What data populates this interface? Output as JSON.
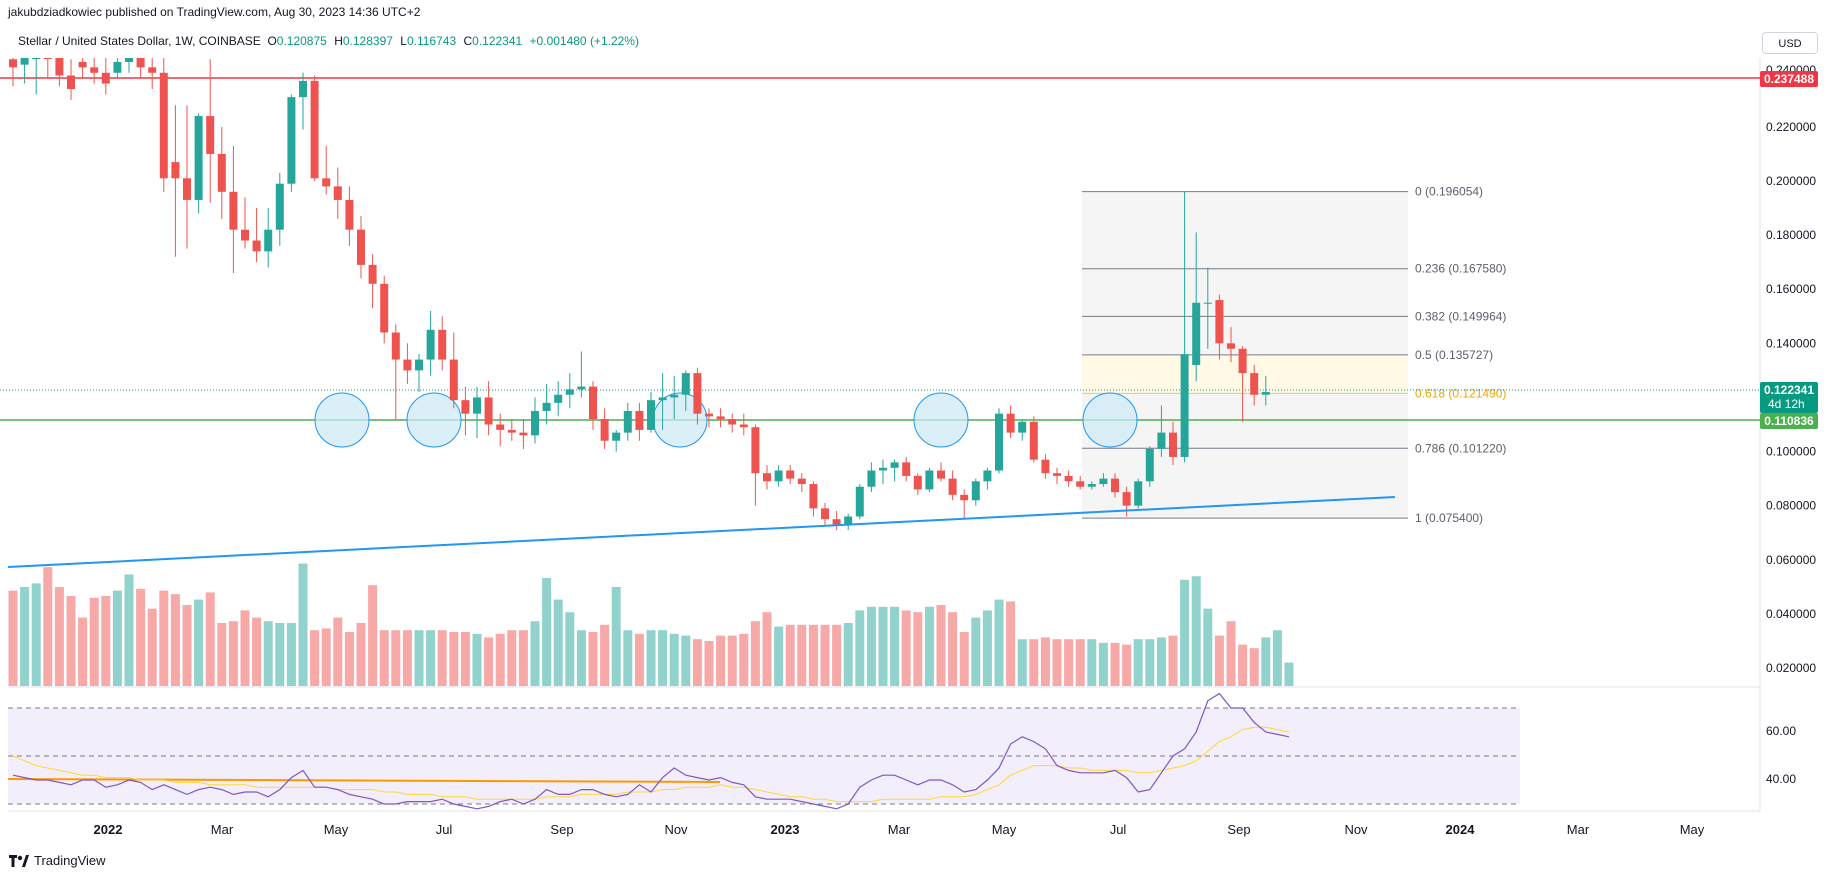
{
  "header": {
    "published_by": "jakubdziadkowiec published on TradingView.com, Aug 30, 2023 14:36 UTC+2",
    "symbol": "Stellar / United States Dollar, 1W, COINBASE",
    "ohlc": [
      {
        "key": "O",
        "value": "0.120875"
      },
      {
        "key": "H",
        "value": "0.128397"
      },
      {
        "key": "L",
        "value": "0.116743"
      },
      {
        "key": "C",
        "value": "0.122341"
      }
    ],
    "change": "+0.001480 (+1.22%)",
    "currency": "USD"
  },
  "price_axis": {
    "ticks": [
      "0.220000",
      "0.200000",
      "0.180000",
      "0.160000",
      "0.140000",
      "0.100000",
      "0.080000",
      "0.060000",
      "0.040000",
      "0.020000"
    ],
    "top_partial": "0.240000"
  },
  "price_tags": {
    "resistance": {
      "label": "0.237488",
      "color": "#f23645"
    },
    "current": {
      "label": "0.122341",
      "countdown": "4d 12h",
      "color": "#089981"
    },
    "support": {
      "label": "0.110836",
      "color": "#4caf50"
    }
  },
  "fib_levels": [
    {
      "ratio": "0",
      "value": "0.196054",
      "text": "0 (0.196054)"
    },
    {
      "ratio": "0.236",
      "value": "0.167580",
      "text": "0.236 (0.167580)"
    },
    {
      "ratio": "0.382",
      "value": "0.149964",
      "text": "0.382 (0.149964)"
    },
    {
      "ratio": "0.5",
      "value": "0.135727",
      "text": "0.5 (0.135727)"
    },
    {
      "ratio": "0.618",
      "value": "0.121490",
      "text": "0.618 (0.121490)"
    },
    {
      "ratio": "0.786",
      "value": "0.101220",
      "text": "0.786 (0.101220)"
    },
    {
      "ratio": "1",
      "value": "0.075400",
      "text": "1 (0.075400)"
    }
  ],
  "rsi": {
    "ticks": [
      "60.00",
      "40.00"
    ]
  },
  "time_axis": [
    {
      "label": "2022",
      "bold": true
    },
    {
      "label": "Mar",
      "bold": false
    },
    {
      "label": "May",
      "bold": false
    },
    {
      "label": "Jul",
      "bold": false
    },
    {
      "label": "Sep",
      "bold": false
    },
    {
      "label": "Nov",
      "bold": false
    },
    {
      "label": "2023",
      "bold": true
    },
    {
      "label": "Mar",
      "bold": false
    },
    {
      "label": "May",
      "bold": false
    },
    {
      "label": "Jul",
      "bold": false
    },
    {
      "label": "Sep",
      "bold": false
    },
    {
      "label": "Nov",
      "bold": false
    },
    {
      "label": "2024",
      "bold": true
    },
    {
      "label": "Mar",
      "bold": false
    },
    {
      "label": "May",
      "bold": false
    }
  ],
  "colors": {
    "up": "#26a69a",
    "down": "#ef5350",
    "volume_up": "#92d2cc",
    "volume_down": "#f7a9a7",
    "trendline": "#2196f3",
    "circle": "#cdeaf5",
    "rsi_line": "#7e57c2",
    "rsi_ma": "#fdd835",
    "rsi_band": "#f3eefb",
    "orange_line": "#ff9800"
  },
  "chart_data": {
    "type": "candlestick",
    "interval": "1W",
    "candles": [
      {
        "o": 0.245,
        "h": 0.262,
        "l": 0.235,
        "c": 0.242
      },
      {
        "o": 0.243,
        "h": 0.258,
        "l": 0.236,
        "c": 0.246
      },
      {
        "o": 0.246,
        "h": 0.262,
        "l": 0.232,
        "c": 0.248
      },
      {
        "o": 0.248,
        "h": 0.256,
        "l": 0.238,
        "c": 0.246
      },
      {
        "o": 0.246,
        "h": 0.252,
        "l": 0.235,
        "c": 0.239
      },
      {
        "o": 0.239,
        "h": 0.245,
        "l": 0.23,
        "c": 0.234
      },
      {
        "o": 0.244,
        "h": 0.25,
        "l": 0.238,
        "c": 0.242
      },
      {
        "o": 0.242,
        "h": 0.248,
        "l": 0.236,
        "c": 0.24
      },
      {
        "o": 0.24,
        "h": 0.246,
        "l": 0.232,
        "c": 0.236
      },
      {
        "o": 0.24,
        "h": 0.252,
        "l": 0.238,
        "c": 0.244
      },
      {
        "o": 0.244,
        "h": 0.25,
        "l": 0.24,
        "c": 0.246
      },
      {
        "o": 0.246,
        "h": 0.258,
        "l": 0.238,
        "c": 0.242
      },
      {
        "o": 0.242,
        "h": 0.255,
        "l": 0.234,
        "c": 0.24
      },
      {
        "o": 0.24,
        "h": 0.25,
        "l": 0.196,
        "c": 0.201
      },
      {
        "o": 0.207,
        "h": 0.228,
        "l": 0.172,
        "c": 0.201
      },
      {
        "o": 0.201,
        "h": 0.228,
        "l": 0.175,
        "c": 0.193
      },
      {
        "o": 0.193,
        "h": 0.225,
        "l": 0.188,
        "c": 0.224
      },
      {
        "o": 0.224,
        "h": 0.245,
        "l": 0.192,
        "c": 0.21
      },
      {
        "o": 0.21,
        "h": 0.22,
        "l": 0.186,
        "c": 0.196
      },
      {
        "o": 0.196,
        "h": 0.213,
        "l": 0.166,
        "c": 0.182
      },
      {
        "o": 0.182,
        "h": 0.194,
        "l": 0.175,
        "c": 0.178
      },
      {
        "o": 0.178,
        "h": 0.19,
        "l": 0.17,
        "c": 0.174
      },
      {
        "o": 0.174,
        "h": 0.19,
        "l": 0.168,
        "c": 0.182
      },
      {
        "o": 0.182,
        "h": 0.203,
        "l": 0.176,
        "c": 0.199
      },
      {
        "o": 0.199,
        "h": 0.232,
        "l": 0.196,
        "c": 0.231
      },
      {
        "o": 0.231,
        "h": 0.24,
        "l": 0.219,
        "c": 0.237
      },
      {
        "o": 0.237,
        "h": 0.239,
        "l": 0.2,
        "c": 0.201
      },
      {
        "o": 0.201,
        "h": 0.213,
        "l": 0.195,
        "c": 0.198
      },
      {
        "o": 0.198,
        "h": 0.205,
        "l": 0.186,
        "c": 0.193
      },
      {
        "o": 0.193,
        "h": 0.198,
        "l": 0.176,
        "c": 0.182
      },
      {
        "o": 0.182,
        "h": 0.187,
        "l": 0.164,
        "c": 0.169
      },
      {
        "o": 0.169,
        "h": 0.173,
        "l": 0.153,
        "c": 0.162
      },
      {
        "o": 0.162,
        "h": 0.165,
        "l": 0.14,
        "c": 0.144
      },
      {
        "o": 0.144,
        "h": 0.147,
        "l": 0.112,
        "c": 0.134
      },
      {
        "o": 0.134,
        "h": 0.14,
        "l": 0.125,
        "c": 0.13
      },
      {
        "o": 0.13,
        "h": 0.136,
        "l": 0.122,
        "c": 0.134
      },
      {
        "o": 0.134,
        "h": 0.152,
        "l": 0.128,
        "c": 0.145
      },
      {
        "o": 0.145,
        "h": 0.15,
        "l": 0.13,
        "c": 0.134
      },
      {
        "o": 0.134,
        "h": 0.144,
        "l": 0.116,
        "c": 0.119
      },
      {
        "o": 0.119,
        "h": 0.124,
        "l": 0.106,
        "c": 0.114
      },
      {
        "o": 0.114,
        "h": 0.124,
        "l": 0.105,
        "c": 0.12
      },
      {
        "o": 0.12,
        "h": 0.126,
        "l": 0.106,
        "c": 0.11
      },
      {
        "o": 0.11,
        "h": 0.114,
        "l": 0.102,
        "c": 0.108
      },
      {
        "o": 0.108,
        "h": 0.112,
        "l": 0.104,
        "c": 0.107
      },
      {
        "o": 0.107,
        "h": 0.112,
        "l": 0.101,
        "c": 0.106
      },
      {
        "o": 0.106,
        "h": 0.12,
        "l": 0.103,
        "c": 0.115
      },
      {
        "o": 0.115,
        "h": 0.125,
        "l": 0.11,
        "c": 0.118
      },
      {
        "o": 0.118,
        "h": 0.126,
        "l": 0.113,
        "c": 0.121
      },
      {
        "o": 0.121,
        "h": 0.129,
        "l": 0.116,
        "c": 0.123
      },
      {
        "o": 0.123,
        "h": 0.137,
        "l": 0.12,
        "c": 0.124
      },
      {
        "o": 0.124,
        "h": 0.126,
        "l": 0.108,
        "c": 0.112
      },
      {
        "o": 0.112,
        "h": 0.116,
        "l": 0.101,
        "c": 0.104
      },
      {
        "o": 0.104,
        "h": 0.108,
        "l": 0.1,
        "c": 0.107
      },
      {
        "o": 0.107,
        "h": 0.118,
        "l": 0.104,
        "c": 0.115
      },
      {
        "o": 0.115,
        "h": 0.118,
        "l": 0.104,
        "c": 0.108
      },
      {
        "o": 0.108,
        "h": 0.122,
        "l": 0.107,
        "c": 0.119
      },
      {
        "o": 0.119,
        "h": 0.129,
        "l": 0.108,
        "c": 0.12
      },
      {
        "o": 0.12,
        "h": 0.128,
        "l": 0.112,
        "c": 0.121
      },
      {
        "o": 0.121,
        "h": 0.13,
        "l": 0.115,
        "c": 0.129
      },
      {
        "o": 0.129,
        "h": 0.131,
        "l": 0.11,
        "c": 0.114
      },
      {
        "o": 0.114,
        "h": 0.116,
        "l": 0.109,
        "c": 0.113
      },
      {
        "o": 0.113,
        "h": 0.116,
        "l": 0.109,
        "c": 0.112
      },
      {
        "o": 0.112,
        "h": 0.114,
        "l": 0.107,
        "c": 0.11
      },
      {
        "o": 0.11,
        "h": 0.114,
        "l": 0.106,
        "c": 0.109
      },
      {
        "o": 0.109,
        "h": 0.11,
        "l": 0.08,
        "c": 0.092
      },
      {
        "o": 0.092,
        "h": 0.095,
        "l": 0.086,
        "c": 0.089
      },
      {
        "o": 0.089,
        "h": 0.095,
        "l": 0.087,
        "c": 0.093
      },
      {
        "o": 0.093,
        "h": 0.095,
        "l": 0.088,
        "c": 0.09
      },
      {
        "o": 0.09,
        "h": 0.092,
        "l": 0.085,
        "c": 0.088
      },
      {
        "o": 0.088,
        "h": 0.089,
        "l": 0.076,
        "c": 0.079
      },
      {
        "o": 0.079,
        "h": 0.081,
        "l": 0.073,
        "c": 0.075
      },
      {
        "o": 0.075,
        "h": 0.078,
        "l": 0.071,
        "c": 0.073
      },
      {
        "o": 0.073,
        "h": 0.077,
        "l": 0.071,
        "c": 0.076
      },
      {
        "o": 0.076,
        "h": 0.088,
        "l": 0.075,
        "c": 0.087
      },
      {
        "o": 0.087,
        "h": 0.096,
        "l": 0.085,
        "c": 0.093
      },
      {
        "o": 0.093,
        "h": 0.097,
        "l": 0.088,
        "c": 0.094
      },
      {
        "o": 0.094,
        "h": 0.097,
        "l": 0.089,
        "c": 0.096
      },
      {
        "o": 0.096,
        "h": 0.098,
        "l": 0.089,
        "c": 0.091
      },
      {
        "o": 0.091,
        "h": 0.092,
        "l": 0.084,
        "c": 0.086
      },
      {
        "o": 0.086,
        "h": 0.094,
        "l": 0.085,
        "c": 0.093
      },
      {
        "o": 0.093,
        "h": 0.096,
        "l": 0.089,
        "c": 0.09
      },
      {
        "o": 0.09,
        "h": 0.093,
        "l": 0.082,
        "c": 0.084
      },
      {
        "o": 0.084,
        "h": 0.086,
        "l": 0.075,
        "c": 0.082
      },
      {
        "o": 0.082,
        "h": 0.09,
        "l": 0.08,
        "c": 0.089
      },
      {
        "o": 0.089,
        "h": 0.094,
        "l": 0.086,
        "c": 0.093
      },
      {
        "o": 0.093,
        "h": 0.116,
        "l": 0.092,
        "c": 0.114
      },
      {
        "o": 0.114,
        "h": 0.117,
        "l": 0.105,
        "c": 0.107
      },
      {
        "o": 0.107,
        "h": 0.112,
        "l": 0.104,
        "c": 0.111
      },
      {
        "o": 0.111,
        "h": 0.113,
        "l": 0.096,
        "c": 0.097
      },
      {
        "o": 0.097,
        "h": 0.099,
        "l": 0.09,
        "c": 0.092
      },
      {
        "o": 0.092,
        "h": 0.094,
        "l": 0.088,
        "c": 0.091
      },
      {
        "o": 0.091,
        "h": 0.093,
        "l": 0.087,
        "c": 0.089
      },
      {
        "o": 0.089,
        "h": 0.091,
        "l": 0.086,
        "c": 0.087
      },
      {
        "o": 0.087,
        "h": 0.089,
        "l": 0.086,
        "c": 0.088
      },
      {
        "o": 0.088,
        "h": 0.092,
        "l": 0.087,
        "c": 0.09
      },
      {
        "o": 0.09,
        "h": 0.092,
        "l": 0.083,
        "c": 0.085
      },
      {
        "o": 0.085,
        "h": 0.087,
        "l": 0.076,
        "c": 0.08
      },
      {
        "o": 0.08,
        "h": 0.09,
        "l": 0.079,
        "c": 0.089
      },
      {
        "o": 0.089,
        "h": 0.102,
        "l": 0.087,
        "c": 0.101
      },
      {
        "o": 0.101,
        "h": 0.117,
        "l": 0.098,
        "c": 0.107
      },
      {
        "o": 0.107,
        "h": 0.111,
        "l": 0.095,
        "c": 0.098
      },
      {
        "o": 0.098,
        "h": 0.196,
        "l": 0.096,
        "c": 0.136
      },
      {
        "o": 0.132,
        "h": 0.181,
        "l": 0.126,
        "c": 0.155
      },
      {
        "o": 0.155,
        "h": 0.168,
        "l": 0.138,
        "c": 0.155
      },
      {
        "o": 0.156,
        "h": 0.158,
        "l": 0.134,
        "c": 0.14
      },
      {
        "o": 0.14,
        "h": 0.146,
        "l": 0.133,
        "c": 0.138
      },
      {
        "o": 0.138,
        "h": 0.139,
        "l": 0.111,
        "c": 0.129
      },
      {
        "o": 0.129,
        "h": 0.132,
        "l": 0.117,
        "c": 0.121
      },
      {
        "o": 0.121,
        "h": 0.128,
        "l": 0.117,
        "c": 0.122
      }
    ],
    "volume": [
      0.53,
      0.55,
      0.57,
      0.66,
      0.55,
      0.5,
      0.38,
      0.49,
      0.5,
      0.53,
      0.62,
      0.54,
      0.43,
      0.53,
      0.51,
      0.45,
      0.48,
      0.52,
      0.35,
      0.36,
      0.42,
      0.38,
      0.36,
      0.35,
      0.35,
      0.68,
      0.31,
      0.32,
      0.38,
      0.3,
      0.35,
      0.56,
      0.31,
      0.31,
      0.31,
      0.31,
      0.31,
      0.31,
      0.3,
      0.3,
      0.29,
      0.27,
      0.29,
      0.31,
      0.31,
      0.36,
      0.6,
      0.48,
      0.41,
      0.31,
      0.3,
      0.34,
      0.55,
      0.31,
      0.29,
      0.31,
      0.31,
      0.29,
      0.28,
      0.26,
      0.25,
      0.28,
      0.28,
      0.29,
      0.36,
      0.41,
      0.33,
      0.34,
      0.34,
      0.34,
      0.34,
      0.34,
      0.35,
      0.42,
      0.44,
      0.44,
      0.44,
      0.42,
      0.41,
      0.44,
      0.45,
      0.41,
      0.3,
      0.38,
      0.42,
      0.48,
      0.47,
      0.26,
      0.26,
      0.27,
      0.26,
      0.26,
      0.26,
      0.26,
      0.24,
      0.24,
      0.23,
      0.26,
      0.26,
      0.27,
      0.28,
      0.59,
      0.61,
      0.43,
      0.28,
      0.36,
      0.23,
      0.21,
      0.27,
      0.31,
      0.13
    ],
    "rsi": [
      42,
      41,
      40,
      40,
      39,
      38,
      40,
      40,
      37,
      38,
      40,
      39,
      36,
      38,
      36,
      34,
      36,
      37,
      36,
      34,
      35,
      35,
      33,
      36,
      41,
      44,
      37,
      37,
      36,
      34,
      33,
      32,
      30,
      30,
      31,
      31,
      31,
      32,
      30,
      29,
      28,
      29,
      31,
      32,
      30,
      32,
      36,
      34,
      34,
      36,
      36,
      34,
      33,
      34,
      38,
      35,
      41,
      45,
      42,
      41,
      40,
      41,
      39,
      38,
      33,
      32,
      32,
      32,
      31,
      30,
      29,
      28,
      30,
      37,
      40,
      42,
      42,
      40,
      38,
      40,
      40,
      38,
      35,
      36,
      40,
      45,
      55,
      58,
      56,
      53,
      46,
      44,
      43,
      43,
      43,
      44,
      41,
      35,
      36,
      43,
      50,
      53,
      60,
      73,
      76,
      70,
      70,
      64,
      60,
      59,
      58
    ],
    "rsi_ma": [
      50,
      48,
      46,
      45,
      44,
      43,
      42,
      42,
      41,
      41,
      41,
      40,
      40,
      40,
      39,
      39,
      39,
      38,
      38,
      38,
      38,
      37,
      37,
      37,
      37,
      37,
      37,
      37,
      36,
      36,
      36,
      36,
      35,
      35,
      34,
      34,
      34,
      33,
      33,
      33,
      32,
      32,
      32,
      32,
      32,
      32,
      33,
      33,
      33,
      34,
      34,
      34,
      34,
      35,
      35,
      35,
      36,
      36,
      37,
      37,
      37,
      38,
      37,
      37,
      36,
      35,
      34,
      33,
      33,
      32,
      32,
      31,
      31,
      31,
      31,
      32,
      32,
      32,
      32,
      32,
      33,
      33,
      33,
      34,
      36,
      38,
      42,
      44,
      46,
      46,
      46,
      45,
      45,
      44,
      44,
      44,
      44,
      43,
      43,
      44,
      45,
      46,
      48,
      52,
      56,
      58,
      61,
      62,
      62,
      61,
      60
    ]
  }
}
